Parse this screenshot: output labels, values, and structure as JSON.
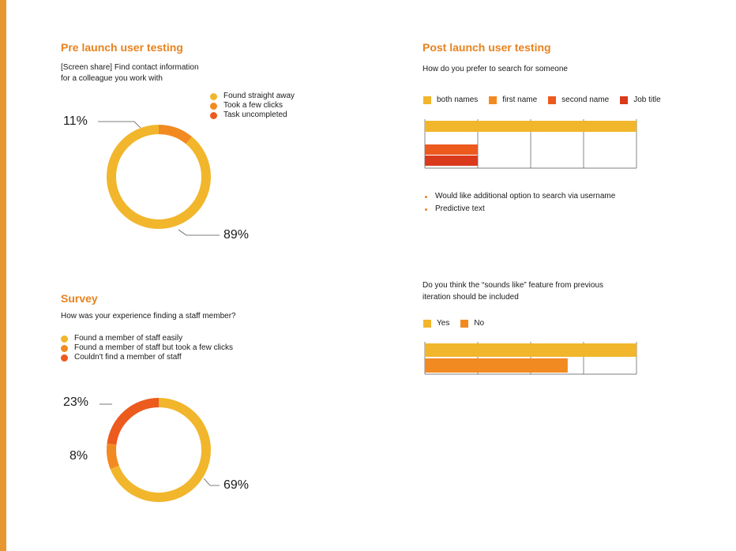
{
  "colors": {
    "yellow": "#f1b62b",
    "orange": "#f28a22",
    "red_orange": "#ec5a1e",
    "red": "#d93a1c",
    "accent": "#e8821e"
  },
  "pre_launch": {
    "title": "Pre launch user testing",
    "question_line1": "[Screen share] Find contact information",
    "question_line2": "for a colleague you work with",
    "legend": [
      "Found straight away",
      "Took a few clicks",
      "Task uncompleted"
    ],
    "label_small": "11%",
    "label_large": "89%"
  },
  "survey": {
    "title": "Survey",
    "question": "How was your experience finding a staff member?",
    "legend": [
      "Found a member of staff easily",
      "Found a member of staff but took a few clicks",
      "Couldn't find a member of staff"
    ],
    "label_23": "23%",
    "label_8": "8%",
    "label_69": "69%"
  },
  "post_launch": {
    "title": "Post launch user testing",
    "question": "How do you prefer to search for someone",
    "legend": [
      "both names",
      "first name",
      "second name",
      "Job title"
    ],
    "bullets": [
      "Would like additional option to search via username",
      "Predictive text"
    ]
  },
  "sounds_like": {
    "question_line1": "Do you think the “sounds like” feature from previous",
    "question_line2": "iteration should be included",
    "legend": [
      "Yes",
      "No"
    ]
  },
  "chart_data": [
    {
      "type": "pie",
      "title": "Pre launch user testing",
      "labels": [
        "Found straight away",
        "Took a few clicks",
        "Task uncompleted"
      ],
      "values": [
        89,
        11,
        0
      ],
      "unit": "%"
    },
    {
      "type": "pie",
      "title": "Survey",
      "labels": [
        "Found a member of staff easily",
        "Found a member of staff but took a few clicks",
        "Couldn't find a member of staff"
      ],
      "values": [
        69,
        8,
        23
      ],
      "unit": "%"
    },
    {
      "type": "bar",
      "orientation": "horizontal",
      "title": "Post launch user testing",
      "categories": [
        "both names",
        "first name",
        "second name",
        "Job title"
      ],
      "values": [
        4,
        0,
        1,
        1
      ],
      "xlim": [
        0,
        4
      ],
      "grid": true,
      "legend": "top"
    },
    {
      "type": "bar",
      "orientation": "horizontal",
      "categories": [
        "Yes",
        "No"
      ],
      "values": [
        4,
        2.7
      ],
      "xlim": [
        0,
        4
      ],
      "grid": true,
      "legend": "top"
    }
  ]
}
